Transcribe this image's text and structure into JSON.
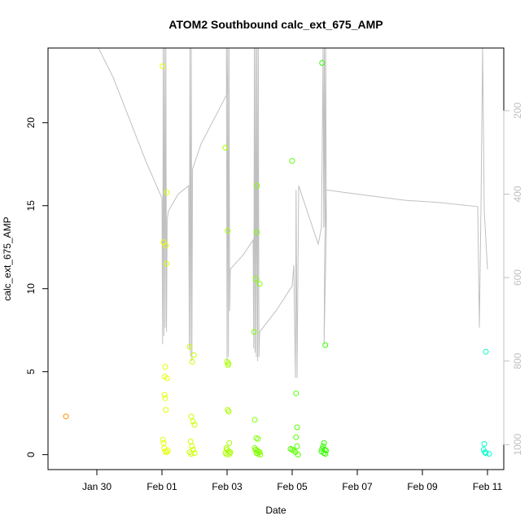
{
  "chart_data": {
    "type": "scatter",
    "title": "ATOM2 Southbound calc_ext_675_AMP",
    "xlabel": "Date",
    "ylabel": "calc_ext_675_AMP",
    "x_ticks": [
      "Jan 30",
      "Feb 01",
      "Feb 03",
      "Feb 05",
      "Feb 07",
      "Feb 09",
      "Feb 11"
    ],
    "x_tick_days": [
      -2,
      0,
      2,
      4,
      6,
      8,
      10
    ],
    "xlim_days": [
      -3.5,
      10.5
    ],
    "x_origin": "Feb 01",
    "y_ticks": [
      0,
      5,
      10,
      15,
      20
    ],
    "ylim": [
      -0.9,
      24.5
    ],
    "right_axis": {
      "label": "",
      "ticks": [
        200,
        400,
        600,
        800,
        1000
      ],
      "lim": [
        50,
        1060
      ],
      "color": "#c0c0c0",
      "inverted": true
    },
    "line_color": "#c0c0c0",
    "grid": false,
    "points": [
      {
        "x": -2.95,
        "y": 2.3,
        "color": "#ff8c00"
      },
      {
        "x": 0.02,
        "y": 23.4,
        "color": "#e5ff00"
      },
      {
        "x": 0.05,
        "y": 12.8,
        "color": "#e5ff00"
      },
      {
        "x": 0.12,
        "y": 12.6,
        "color": "#e5ff00"
      },
      {
        "x": 0.15,
        "y": 15.8,
        "color": "#e5ff00"
      },
      {
        "x": 0.14,
        "y": 11.5,
        "color": "#e5ff00"
      },
      {
        "x": 0.1,
        "y": 5.3,
        "color": "#e5ff00"
      },
      {
        "x": 0.08,
        "y": 4.7,
        "color": "#e5ff00"
      },
      {
        "x": 0.16,
        "y": 4.6,
        "color": "#e5ff00"
      },
      {
        "x": 0.08,
        "y": 3.6,
        "color": "#e5ff00"
      },
      {
        "x": 0.1,
        "y": 3.4,
        "color": "#e5ff00"
      },
      {
        "x": 0.12,
        "y": 2.7,
        "color": "#e5ff00"
      },
      {
        "x": 0.03,
        "y": 0.9,
        "color": "#e5ff00"
      },
      {
        "x": 0.05,
        "y": 0.7,
        "color": "#e5ff00"
      },
      {
        "x": 0.07,
        "y": 0.4,
        "color": "#e5ff00"
      },
      {
        "x": 0.1,
        "y": 0.2,
        "color": "#e5ff00"
      },
      {
        "x": 0.15,
        "y": 0.15,
        "color": "#e5ff00"
      },
      {
        "x": 0.18,
        "y": 0.25,
        "color": "#e5ff00"
      },
      {
        "x": 0.85,
        "y": 6.5,
        "color": "#ccff00"
      },
      {
        "x": 0.98,
        "y": 6.0,
        "color": "#ccff00"
      },
      {
        "x": 0.93,
        "y": 5.6,
        "color": "#ccff00"
      },
      {
        "x": 0.9,
        "y": 2.3,
        "color": "#ccff00"
      },
      {
        "x": 0.95,
        "y": 2.0,
        "color": "#ccff00"
      },
      {
        "x": 1.0,
        "y": 1.8,
        "color": "#ccff00"
      },
      {
        "x": 0.88,
        "y": 0.8,
        "color": "#ccff00"
      },
      {
        "x": 0.92,
        "y": 0.5,
        "color": "#ccff00"
      },
      {
        "x": 0.96,
        "y": 0.3,
        "color": "#ccff00"
      },
      {
        "x": 0.85,
        "y": 0.15,
        "color": "#ccff00"
      },
      {
        "x": 1.0,
        "y": 0.1,
        "color": "#ccff00"
      },
      {
        "x": 0.9,
        "y": 0.05,
        "color": "#ccff00"
      },
      {
        "x": 1.95,
        "y": 18.5,
        "color": "#aaff00"
      },
      {
        "x": 2.02,
        "y": 13.5,
        "color": "#aaff00"
      },
      {
        "x": 2.0,
        "y": 5.6,
        "color": "#aaff00"
      },
      {
        "x": 2.04,
        "y": 5.5,
        "color": "#aaff00"
      },
      {
        "x": 2.03,
        "y": 5.4,
        "color": "#aaff00"
      },
      {
        "x": 2.02,
        "y": 2.7,
        "color": "#aaff00"
      },
      {
        "x": 2.05,
        "y": 2.6,
        "color": "#aaff00"
      },
      {
        "x": 2.07,
        "y": 0.7,
        "color": "#aaff00"
      },
      {
        "x": 1.98,
        "y": 0.4,
        "color": "#aaff00"
      },
      {
        "x": 2.0,
        "y": 0.3,
        "color": "#aaff00"
      },
      {
        "x": 2.05,
        "y": 0.2,
        "color": "#aaff00"
      },
      {
        "x": 2.1,
        "y": 0.15,
        "color": "#aaff00"
      },
      {
        "x": 1.95,
        "y": 0.1,
        "color": "#aaff00"
      },
      {
        "x": 2.08,
        "y": 0.05,
        "color": "#aaff00"
      },
      {
        "x": 2.0,
        "y": 0.0,
        "color": "#aaff00"
      },
      {
        "x": 2.92,
        "y": 16.2,
        "color": "#80ff00"
      },
      {
        "x": 2.92,
        "y": 13.4,
        "color": "#80ff00"
      },
      {
        "x": 2.88,
        "y": 10.6,
        "color": "#80ff00"
      },
      {
        "x": 3.0,
        "y": 10.3,
        "color": "#80ff00"
      },
      {
        "x": 2.83,
        "y": 7.4,
        "color": "#80ff00"
      },
      {
        "x": 2.85,
        "y": 2.1,
        "color": "#80ff00"
      },
      {
        "x": 2.9,
        "y": 1.0,
        "color": "#80ff00"
      },
      {
        "x": 2.95,
        "y": 0.95,
        "color": "#80ff00"
      },
      {
        "x": 2.85,
        "y": 0.4,
        "color": "#80ff00"
      },
      {
        "x": 2.88,
        "y": 0.3,
        "color": "#80ff00"
      },
      {
        "x": 2.92,
        "y": 0.25,
        "color": "#80ff00"
      },
      {
        "x": 2.96,
        "y": 0.2,
        "color": "#80ff00"
      },
      {
        "x": 3.0,
        "y": 0.15,
        "color": "#80ff00"
      },
      {
        "x": 2.9,
        "y": 0.1,
        "color": "#80ff00"
      },
      {
        "x": 2.95,
        "y": 0.05,
        "color": "#80ff00"
      },
      {
        "x": 3.02,
        "y": 0.0,
        "color": "#80ff00"
      },
      {
        "x": 4.0,
        "y": 17.7,
        "color": "#55ff00"
      },
      {
        "x": 4.12,
        "y": 3.7,
        "color": "#55ff00"
      },
      {
        "x": 4.15,
        "y": 1.65,
        "color": "#55ff00"
      },
      {
        "x": 4.12,
        "y": 1.05,
        "color": "#55ff00"
      },
      {
        "x": 4.15,
        "y": 0.5,
        "color": "#55ff00"
      },
      {
        "x": 3.95,
        "y": 0.35,
        "color": "#55ff00"
      },
      {
        "x": 4.0,
        "y": 0.3,
        "color": "#55ff00"
      },
      {
        "x": 4.05,
        "y": 0.25,
        "color": "#55ff00"
      },
      {
        "x": 4.1,
        "y": 0.15,
        "color": "#55ff00"
      },
      {
        "x": 4.18,
        "y": 0.0,
        "color": "#55ff00"
      },
      {
        "x": 4.92,
        "y": 23.6,
        "color": "#33ff00"
      },
      {
        "x": 5.02,
        "y": 6.6,
        "color": "#33ff00"
      },
      {
        "x": 4.98,
        "y": 0.7,
        "color": "#33ff00"
      },
      {
        "x": 4.95,
        "y": 0.5,
        "color": "#33ff00"
      },
      {
        "x": 4.92,
        "y": 0.35,
        "color": "#33ff00"
      },
      {
        "x": 5.0,
        "y": 0.3,
        "color": "#33ff00"
      },
      {
        "x": 5.04,
        "y": 0.25,
        "color": "#33ff00"
      },
      {
        "x": 4.9,
        "y": 0.2,
        "color": "#33ff00"
      },
      {
        "x": 4.97,
        "y": 0.1,
        "color": "#33ff00"
      },
      {
        "x": 5.02,
        "y": 0.05,
        "color": "#33ff00"
      },
      {
        "x": 9.95,
        "y": 6.2,
        "color": "#00ffcc"
      },
      {
        "x": 9.9,
        "y": 0.65,
        "color": "#00ffcc"
      },
      {
        "x": 9.88,
        "y": 0.3,
        "color": "#00ffcc"
      },
      {
        "x": 9.92,
        "y": 0.15,
        "color": "#00ffcc"
      },
      {
        "x": 9.95,
        "y": 0.1,
        "color": "#00ffcc"
      },
      {
        "x": 10.05,
        "y": 0.05,
        "color": "#00ffcc"
      }
    ],
    "depth_line": [
      [
        -1.95,
        50
      ],
      [
        -1.5,
        120
      ],
      [
        -1.0,
        220
      ],
      [
        -0.5,
        320
      ],
      [
        0.0,
        410
      ],
      [
        0.02,
        760
      ],
      [
        0.04,
        50
      ],
      [
        0.06,
        740
      ],
      [
        0.08,
        50
      ],
      [
        0.1,
        720
      ],
      [
        0.12,
        50
      ],
      [
        0.14,
        730
      ],
      [
        0.16,
        460
      ],
      [
        0.2,
        440
      ],
      [
        0.5,
        400
      ],
      [
        0.82,
        380
      ],
      [
        0.84,
        770
      ],
      [
        0.86,
        50
      ],
      [
        0.88,
        790
      ],
      [
        0.9,
        50
      ],
      [
        0.92,
        800
      ],
      [
        0.94,
        340
      ],
      [
        1.2,
        280
      ],
      [
        1.6,
        220
      ],
      [
        2.0,
        160
      ],
      [
        1.98,
        50
      ],
      [
        2.0,
        800
      ],
      [
        2.02,
        50
      ],
      [
        2.04,
        790
      ],
      [
        2.06,
        50
      ],
      [
        2.08,
        680
      ],
      [
        2.1,
        580
      ],
      [
        2.5,
        545
      ],
      [
        2.8,
        510
      ],
      [
        2.82,
        770
      ],
      [
        2.84,
        50
      ],
      [
        2.86,
        780
      ],
      [
        2.88,
        50
      ],
      [
        2.9,
        790
      ],
      [
        2.92,
        50
      ],
      [
        2.94,
        800
      ],
      [
        2.96,
        50
      ],
      [
        2.98,
        790
      ],
      [
        3.0,
        730
      ],
      [
        3.5,
        680
      ],
      [
        4.0,
        620
      ],
      [
        4.05,
        570
      ],
      [
        4.1,
        840
      ],
      [
        4.12,
        390
      ],
      [
        4.15,
        840
      ],
      [
        4.2,
        380
      ],
      [
        4.8,
        520
      ],
      [
        4.9,
        480
      ],
      [
        4.95,
        50
      ],
      [
        4.97,
        480
      ],
      [
        4.99,
        50
      ],
      [
        5.01,
        480
      ],
      [
        5.03,
        50
      ],
      [
        5.05,
        480
      ],
      [
        4.98,
        760
      ],
      [
        5.0,
        530
      ],
      [
        5.05,
        390
      ],
      [
        5.5,
        395
      ],
      [
        6.5,
        405
      ],
      [
        7.5,
        415
      ],
      [
        8.5,
        420
      ],
      [
        9.7,
        430
      ],
      [
        9.75,
        720
      ],
      [
        9.8,
        430
      ],
      [
        9.85,
        50
      ],
      [
        9.9,
        440
      ],
      [
        10.0,
        580
      ]
    ]
  }
}
